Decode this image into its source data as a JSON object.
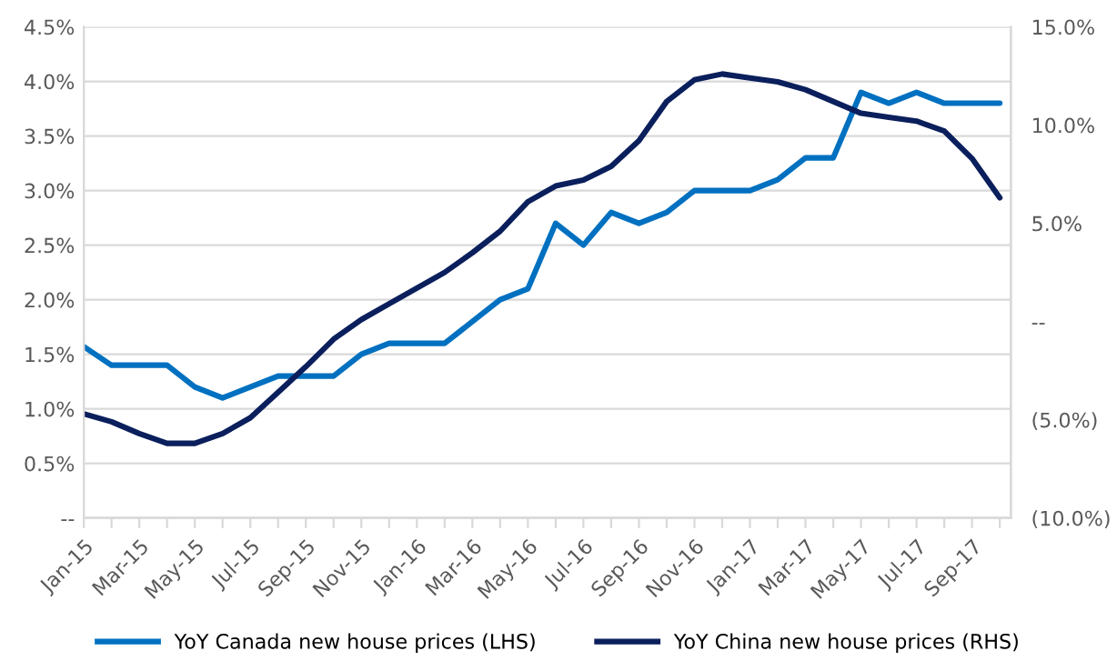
{
  "chart_data": {
    "type": "line",
    "categories": [
      "Jan-15",
      null,
      "Mar-15",
      null,
      "May-15",
      null,
      "Jul-15",
      null,
      "Sep-15",
      null,
      "Nov-15",
      null,
      "Jan-16",
      null,
      "Mar-16",
      null,
      "May-16",
      null,
      "Jul-16",
      null,
      "Sep-16",
      null,
      "Nov-16",
      null,
      "Jan-17",
      null,
      "Mar-17",
      null,
      "May-17",
      null,
      "Jul-17",
      null,
      "Sep-17",
      null
    ],
    "series": [
      {
        "name": "YoY Canada new house prices (LHS)",
        "color": "#0070c0",
        "values": [
          1.57,
          1.4,
          1.4,
          1.4,
          1.2,
          1.1,
          1.2,
          1.3,
          1.3,
          1.3,
          1.5,
          1.6,
          1.6,
          1.6,
          1.8,
          2.0,
          2.1,
          2.7,
          2.5,
          2.8,
          2.7,
          2.8,
          3.0,
          3.0,
          3.0,
          3.1,
          3.3,
          3.3,
          3.9,
          3.8,
          3.9,
          3.8,
          3.8,
          3.8
        ]
      },
      {
        "name": "YoY China new house prices (RHS)",
        "color": "#0a1f5c",
        "axis": "y2",
        "values": [
          -4.7,
          -5.1,
          -5.7,
          -6.2,
          -6.2,
          -5.7,
          -4.9,
          -3.6,
          -2.3,
          -0.9,
          0.1,
          0.9,
          1.7,
          2.5,
          3.5,
          4.6,
          6.1,
          6.9,
          7.2,
          7.9,
          9.2,
          11.2,
          12.3,
          12.6,
          12.4,
          12.2,
          11.8,
          11.2,
          10.6,
          10.4,
          10.2,
          9.7,
          8.3,
          6.3
        ]
      }
    ],
    "ylim": [
      0,
      4.5
    ],
    "yticks": [
      {
        "value": 0,
        "label": "--"
      },
      {
        "value": 0.5,
        "label": "0.5%"
      },
      {
        "value": 1.0,
        "label": "1.0%"
      },
      {
        "value": 1.5,
        "label": "1.5%"
      },
      {
        "value": 2.0,
        "label": "2.0%"
      },
      {
        "value": 2.5,
        "label": "2.5%"
      },
      {
        "value": 3.0,
        "label": "3.0%"
      },
      {
        "value": 3.5,
        "label": "3.5%"
      },
      {
        "value": 4.0,
        "label": "4.0%"
      },
      {
        "value": 4.5,
        "label": "4.5%"
      }
    ],
    "y2lim": [
      -10,
      15
    ],
    "y2ticks": [
      {
        "value": -10,
        "label": "(10.0%)"
      },
      {
        "value": -5,
        "label": "(5.0%)"
      },
      {
        "value": 0,
        "label": "--"
      },
      {
        "value": 5,
        "label": "5.0%"
      },
      {
        "value": 10,
        "label": "10.0%"
      },
      {
        "value": 15,
        "label": "15.0%"
      }
    ],
    "grid": "y",
    "legend": "bottom",
    "marker": "none",
    "line_style": "solid"
  }
}
